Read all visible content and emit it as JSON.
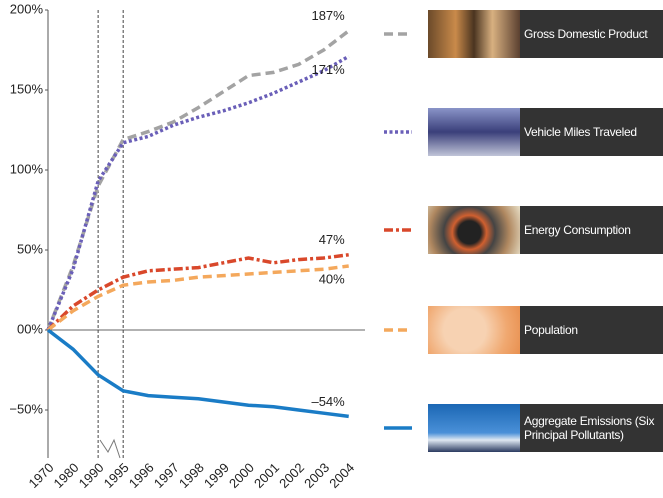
{
  "chart_data": {
    "type": "line",
    "categories": [
      "1970",
      "1980",
      "1990",
      "1995",
      "1996",
      "1997",
      "1998",
      "1999",
      "2000",
      "2001",
      "2002",
      "2003",
      "2004"
    ],
    "ylim": [
      -80,
      200
    ],
    "yticks": [
      {
        "value": -50,
        "label": "−50%"
      },
      {
        "value": 0,
        "label": "00%"
      },
      {
        "value": 50,
        "label": "50%"
      },
      {
        "value": 100,
        "label": "100%"
      },
      {
        "value": 150,
        "label": "150%"
      },
      {
        "value": 200,
        "label": "200%"
      }
    ],
    "series": [
      {
        "name": "Gross Domestic Product",
        "color": "#a3a3a3",
        "line_style": "dashed",
        "label_position": "above",
        "values": [
          0,
          40,
          90,
          119,
          124,
          130,
          139,
          149,
          159,
          161,
          166,
          175,
          187
        ],
        "value_labels": [
          null,
          null,
          null,
          null,
          null,
          null,
          null,
          null,
          null,
          null,
          null,
          null,
          "187%"
        ]
      },
      {
        "name": "Vehicle Miles Traveled",
        "color": "#6a5fb8",
        "line_style": "dotted",
        "label_position": "below",
        "values": [
          0,
          38,
          93,
          117,
          121,
          128,
          133,
          137,
          142,
          148,
          155,
          162,
          171
        ],
        "value_labels": [
          null,
          null,
          null,
          null,
          null,
          null,
          null,
          null,
          null,
          null,
          null,
          null,
          "171%"
        ]
      },
      {
        "name": "Energy Consumption",
        "color": "#d9482b",
        "line_style": "dash-dot",
        "label_position": "above",
        "values": [
          0,
          15,
          25,
          33,
          37,
          38,
          39,
          42,
          45,
          42,
          44,
          45,
          47
        ],
        "value_labels": [
          null,
          null,
          null,
          null,
          null,
          null,
          null,
          null,
          null,
          null,
          null,
          null,
          "47%"
        ]
      },
      {
        "name": "Population",
        "color": "#f4a85c",
        "line_style": "dashed",
        "label_position": "below",
        "values": [
          0,
          12,
          21,
          28,
          30,
          31,
          33,
          34,
          35,
          36,
          37,
          38,
          40
        ],
        "value_labels": [
          null,
          null,
          null,
          null,
          null,
          null,
          null,
          null,
          null,
          null,
          null,
          null,
          "40%"
        ]
      },
      {
        "name": "Aggregate Emissions (Six Principal Pollutants)",
        "color": "#1a7cc6",
        "line_style": "solid",
        "label_position": "above",
        "values": [
          0,
          -12,
          -28,
          -38,
          -41,
          -42,
          -43,
          -45,
          -47,
          -48,
          -50,
          -52,
          -54
        ],
        "value_labels": [
          null,
          null,
          null,
          null,
          null,
          null,
          null,
          null,
          null,
          null,
          null,
          null,
          "–54%"
        ]
      }
    ]
  }
}
